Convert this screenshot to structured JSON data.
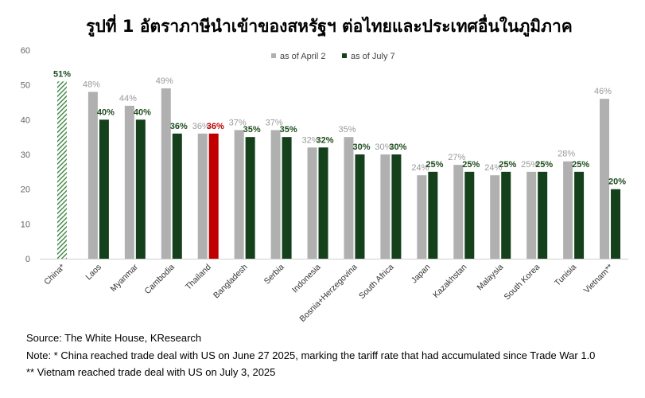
{
  "chart_data": {
    "type": "bar",
    "title": "รูปที่ 1 อัตราภาษีนำเข้าของสหรัฐฯ ต่อไทยและประเทศอื่นในภูมิภาค",
    "categories": [
      "China*",
      "Laos",
      "Myanmar",
      "Cambodia",
      "Thailand",
      "Bangladesh",
      "Serbia",
      "Indonesia",
      "Bosnia+Herzegovina",
      "South Africa",
      "Japan",
      "Kazakhstan",
      "Malaysia",
      "South Korea",
      "Tunisia",
      "Vietnam**"
    ],
    "series": [
      {
        "name": "as of April 2",
        "color": "#b0b0b0",
        "values": [
          null,
          48,
          44,
          49,
          36,
          37,
          37,
          32,
          35,
          30,
          24,
          27,
          24,
          25,
          28,
          46
        ]
      },
      {
        "name": "as of July 7",
        "color": "#14401c",
        "values": [
          51,
          40,
          40,
          36,
          36,
          35,
          35,
          32,
          30,
          30,
          25,
          25,
          25,
          25,
          25,
          20
        ]
      }
    ],
    "data_labels": {
      "april": [
        "",
        "48%",
        "44%",
        "49%",
        "36%",
        "37%",
        "37%",
        "32%",
        "35%",
        "30%",
        "24%",
        "27%",
        "24%",
        "25%",
        "28%",
        "46%"
      ],
      "july": [
        "51%",
        "40%",
        "40%",
        "36%",
        "36%",
        "35%",
        "35%",
        "32%",
        "30%",
        "30%",
        "25%",
        "25%",
        "25%",
        "25%",
        "25%",
        "20%"
      ]
    },
    "highlight": {
      "category": "Thailand",
      "color": "#c00000"
    },
    "hatched": {
      "category": "China*",
      "color": "#2e7d32"
    },
    "yticks": [
      "0",
      "10",
      "20",
      "30",
      "40",
      "50",
      "60"
    ],
    "ylim": [
      0,
      60
    ],
    "legend_position": "top-center",
    "grid": false
  },
  "notes": {
    "source": "Source: The White House, KResearch",
    "note1": "Note: * China reached trade deal with US on June 27 2025, marking the tariff rate that had accumulated since Trade War 1.0",
    "note2": "** Vietnam reached trade deal with US on July 3, 2025"
  }
}
